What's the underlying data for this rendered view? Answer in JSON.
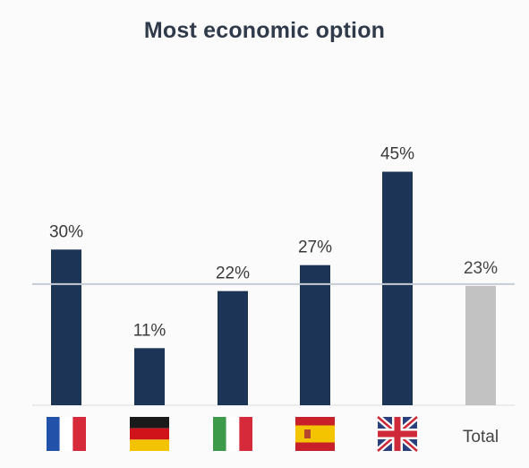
{
  "chart_data": {
    "type": "bar",
    "title": "Most economic option",
    "categories": [
      "France",
      "Germany",
      "Italy",
      "Spain",
      "United Kingdom",
      "Total"
    ],
    "category_labels": [
      "",
      "",
      "",
      "",
      "",
      "Total"
    ],
    "values": [
      30,
      11,
      22,
      27,
      45,
      23
    ],
    "value_labels": [
      "30%",
      "11%",
      "22%",
      "27%",
      "45%",
      "23%"
    ],
    "reference_line": 23,
    "ylim": [
      0,
      60
    ],
    "xlabel": "",
    "ylabel": "",
    "grid": false,
    "colors": {
      "country_bar": "#1c3557",
      "total_bar": "#c2c2c2",
      "reference_line": "#c6ccd4",
      "value_label": "#3a3a3a",
      "total_label": "#444444",
      "axis_line": "#dcdcdc"
    },
    "flags": [
      "flag-france-icon",
      "flag-germany-icon",
      "flag-italy-icon",
      "flag-spain-icon",
      "flag-uk-icon",
      ""
    ]
  }
}
